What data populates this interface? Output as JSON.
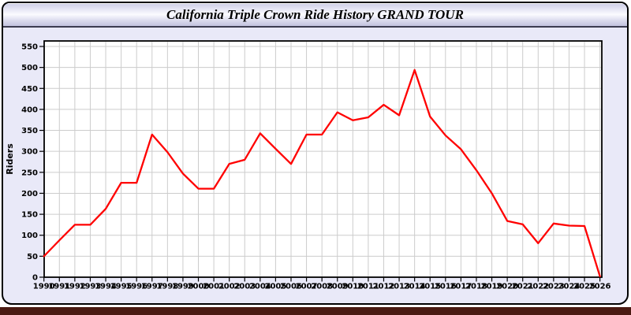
{
  "window": {
    "title": "California Triple Crown Ride History GRAND TOUR"
  },
  "chart_data": {
    "type": "line",
    "title": "California Triple Crown Ride History GRAND TOUR",
    "xlabel": "",
    "ylabel": "Riders",
    "x": [
      1990,
      1991,
      1992,
      1993,
      1994,
      1995,
      1996,
      1997,
      1998,
      1999,
      2000,
      2001,
      2002,
      2003,
      2004,
      2005,
      2006,
      2007,
      2008,
      2009,
      2010,
      2011,
      2012,
      2013,
      2014,
      2015,
      2016,
      2017,
      2018,
      2019,
      2020,
      2021,
      2022,
      2023,
      2024,
      2025,
      2026
    ],
    "series": [
      {
        "name": "Riders",
        "color": "#ff0000",
        "values": [
          50,
          88,
          125,
          125,
          163,
          225,
          225,
          340,
          298,
          247,
          211,
          211,
          270,
          280,
          343,
          306,
          270,
          340,
          340,
          393,
          374,
          381,
          411,
          386,
          494,
          383,
          338,
          305,
          255,
          200,
          134,
          126,
          81,
          128,
          123,
          122,
          2
        ]
      }
    ],
    "ylim": [
      0,
      550
    ],
    "ytick_step": 50,
    "grid": true,
    "grid_color": "#cccccc",
    "plot_bg": "#ffffff",
    "axis_color": "#000000",
    "legend_position": "none"
  },
  "colors": {
    "page_bg": "#ffffff",
    "window_bg": "#e9e9f8",
    "titlebar_top": "#cdcde6",
    "titlebar_bottom": "#c2c2de",
    "frame_border": "#000000",
    "footer_band": "#4a1a12",
    "line": "#ff0000"
  }
}
